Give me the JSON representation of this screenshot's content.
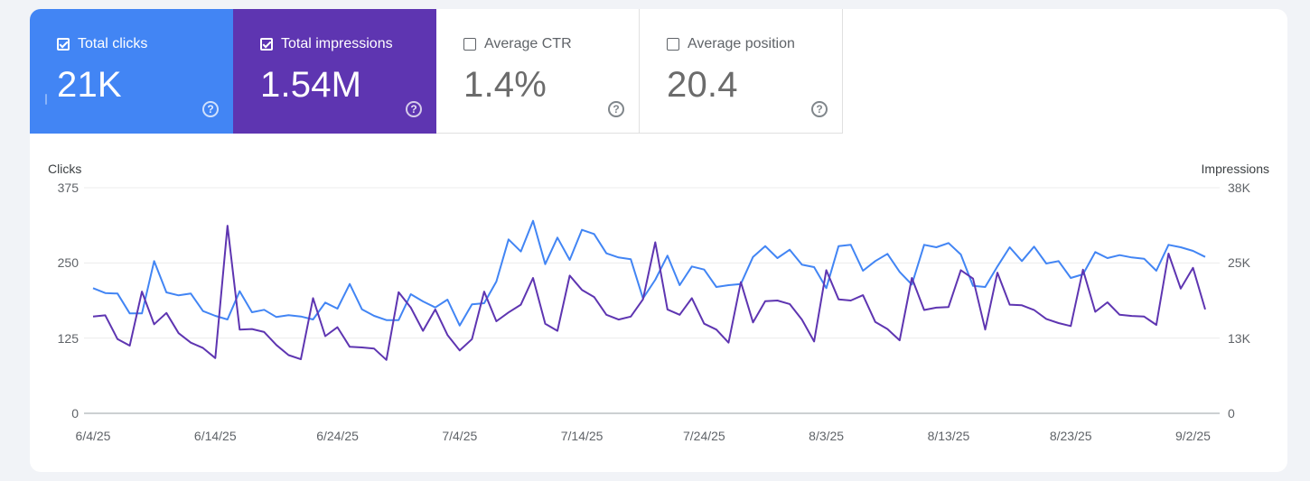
{
  "cards": [
    {
      "label": "Total clicks",
      "value": "21K",
      "checked": true,
      "color": "#4285f4"
    },
    {
      "label": "Total impressions",
      "value": "1.54M",
      "checked": true,
      "color": "#5e35b1"
    },
    {
      "label": "Average CTR",
      "value": "1.4%",
      "checked": false,
      "color": "#ffffff"
    },
    {
      "label": "Average position",
      "value": "20.4",
      "checked": false,
      "color": "#ffffff"
    }
  ],
  "help_icon": "?",
  "chart_data": {
    "type": "line",
    "y_left_label": "Clicks",
    "y_right_label": "Impressions",
    "y_left_ticks": [
      "375",
      "250",
      "125",
      "0"
    ],
    "y_right_ticks": [
      "38K",
      "25K",
      "13K",
      "0"
    ],
    "y_left_range": [
      0,
      375
    ],
    "y_right_range": [
      0,
      38000
    ],
    "x_ticks": [
      "6/4/25",
      "6/14/25",
      "6/24/25",
      "7/4/25",
      "7/14/25",
      "7/24/25",
      "8/3/25",
      "8/13/25",
      "8/23/25",
      "9/2/25"
    ],
    "x_start": "6/4/25",
    "x_end": "9/2/25",
    "grid": true,
    "series": [
      {
        "name": "Total clicks",
        "axis": "left",
        "color": "#4285f4",
        "values": [
          208,
          200,
          199,
          166,
          166,
          253,
          201,
          196,
          199,
          170,
          162,
          156,
          203,
          168,
          172,
          160,
          163,
          161,
          156,
          184,
          174,
          215,
          173,
          162,
          155,
          155,
          198,
          186,
          176,
          189,
          146,
          181,
          183,
          219,
          289,
          269,
          320,
          248,
          292,
          255,
          305,
          298,
          266,
          259,
          256,
          191,
          222,
          262,
          213,
          244,
          239,
          210,
          213,
          215,
          260,
          278,
          258,
          272,
          247,
          243,
          208,
          278,
          280,
          237,
          253,
          265,
          235,
          214,
          280,
          276,
          283,
          264,
          212,
          210,
          244,
          276,
          253,
          277,
          249,
          253,
          225,
          231,
          268,
          258,
          263,
          259,
          257,
          237,
          280,
          276,
          270,
          260
        ]
      },
      {
        "name": "Total impressions",
        "axis": "right",
        "color": "#5e35b1",
        "values": [
          16300,
          16500,
          12500,
          11400,
          20500,
          15000,
          16900,
          13500,
          11900,
          11000,
          9300,
          31600,
          14100,
          14200,
          13700,
          11500,
          9800,
          9100,
          19400,
          13000,
          14500,
          11200,
          11100,
          10900,
          9000,
          20400,
          17800,
          13900,
          17500,
          13200,
          10600,
          12500,
          20500,
          15500,
          17000,
          18300,
          22800,
          15100,
          13900,
          23200,
          20800,
          19600,
          16600,
          15800,
          16300,
          19200,
          28800,
          17500,
          16600,
          19400,
          15100,
          14100,
          11900,
          22100,
          15300,
          18900,
          19000,
          18400,
          15800,
          12100,
          24100,
          19200,
          19000,
          19900,
          15400,
          14200,
          12300,
          22800,
          17400,
          17800,
          17900,
          24100,
          22700,
          14100,
          23700,
          18300,
          18200,
          17400,
          15900,
          15200,
          14700,
          24200,
          17100,
          18700,
          16600,
          16400,
          16300,
          14900,
          26900,
          21000,
          24500,
          17500
        ]
      }
    ]
  }
}
